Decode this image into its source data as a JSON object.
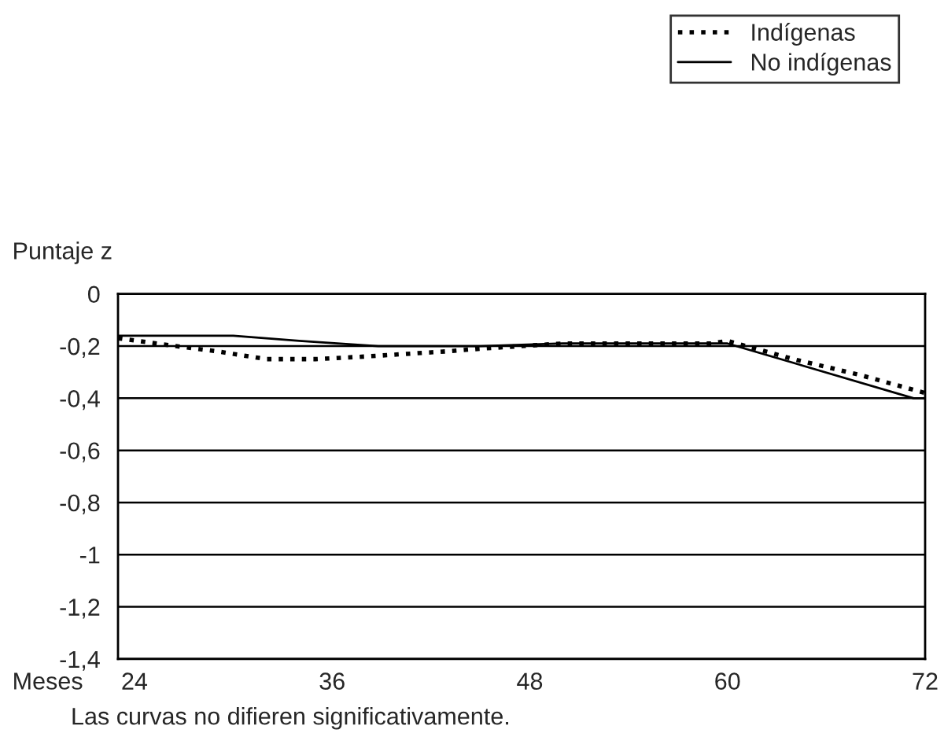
{
  "chart_data": {
    "type": "line",
    "ylabel": "Puntaje z",
    "xlabel": "Meses",
    "annotations": [
      "Las curvas no difieren significativamente."
    ],
    "series": [
      {
        "name": "Indígenas",
        "color": "#000000",
        "line_style": "dotted",
        "x": [
          23,
          26.5,
          29,
          32,
          35,
          38,
          43,
          45,
          50,
          55,
          59,
          60,
          64,
          68,
          72
        ],
        "values": [
          -0.17,
          -0.2,
          -0.22,
          -0.25,
          -0.25,
          -0.24,
          -0.22,
          -0.21,
          -0.19,
          -0.19,
          -0.19,
          -0.18,
          -0.25,
          -0.31,
          -0.38
        ]
      },
      {
        "name": "No indígenas",
        "color": "#000000",
        "line_style": "solid",
        "x": [
          23,
          30,
          34,
          38.8,
          45,
          50,
          55,
          60,
          71.3,
          72
        ],
        "values": [
          -0.16,
          -0.16,
          -0.18,
          -0.2,
          -0.2,
          -0.19,
          -0.19,
          -0.19,
          -0.4,
          -0.4
        ]
      }
    ],
    "xlim": [
      23,
      72
    ],
    "xticks": [
      24,
      36,
      48,
      60,
      72
    ],
    "ylim": [
      -1.4,
      0
    ],
    "yticks": [
      0,
      {
        "value": -0.2,
        "label": "-0,2"
      },
      {
        "value": -0.4,
        "label": "-0,4"
      },
      {
        "value": -0.6,
        "label": "-0,6"
      },
      {
        "value": -0.8,
        "label": "-0,8"
      },
      -1,
      {
        "value": -1.2,
        "label": "-1,2"
      },
      {
        "value": -1.4,
        "label": "-1,4"
      }
    ],
    "grid": "y",
    "legend": "top right",
    "marker": "none"
  }
}
